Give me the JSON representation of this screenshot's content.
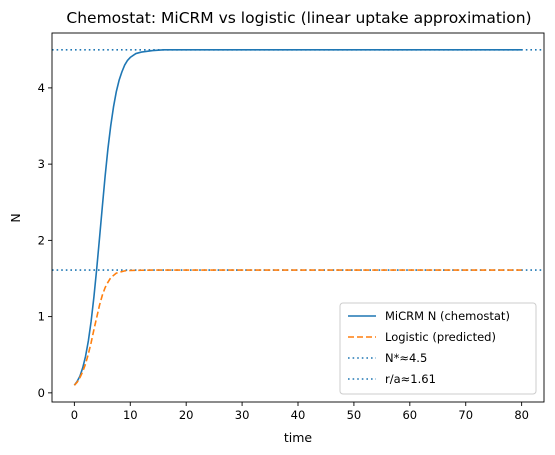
{
  "chart_data": {
    "type": "line",
    "title": "Chemostat: MiCRM vs logistic (linear uptake approximation)",
    "xlabel": "time",
    "ylabel": "N",
    "xlim": [
      -4,
      84
    ],
    "ylim": [
      -0.12,
      4.72
    ],
    "xticks": [
      0,
      10,
      20,
      30,
      40,
      50,
      60,
      70,
      80
    ],
    "yticks": [
      0,
      1,
      2,
      3,
      4
    ],
    "grid": false,
    "legend_position": "lower right",
    "series": [
      {
        "name": "MiCRM N (chemostat)",
        "style": "solid",
        "color": "#1f77b4",
        "x": [
          0,
          0.5,
          1,
          1.5,
          2,
          2.5,
          3,
          3.5,
          4,
          4.5,
          5,
          5.5,
          6,
          6.5,
          7,
          7.5,
          8,
          8.5,
          9,
          9.5,
          10,
          11,
          12,
          14,
          16,
          20,
          30,
          40,
          50,
          60,
          70,
          80
        ],
        "y": [
          0.1,
          0.15,
          0.22,
          0.33,
          0.48,
          0.68,
          0.94,
          1.26,
          1.63,
          2.03,
          2.44,
          2.84,
          3.2,
          3.5,
          3.75,
          3.95,
          4.1,
          4.21,
          4.3,
          4.36,
          4.4,
          4.45,
          4.47,
          4.49,
          4.5,
          4.5,
          4.5,
          4.5,
          4.5,
          4.5,
          4.5,
          4.5
        ]
      },
      {
        "name": "Logistic (predicted)",
        "style": "dashed",
        "color": "#ff7f0e",
        "x": [
          0,
          0.5,
          1,
          1.5,
          2,
          2.5,
          3,
          3.5,
          4,
          4.5,
          5,
          5.5,
          6,
          6.5,
          7,
          7.5,
          8,
          8.5,
          9,
          10,
          11,
          12,
          14,
          16,
          20,
          30,
          40,
          50,
          60,
          70,
          80
        ],
        "y": [
          0.1,
          0.14,
          0.2,
          0.28,
          0.38,
          0.51,
          0.66,
          0.83,
          0.99,
          1.15,
          1.28,
          1.38,
          1.45,
          1.51,
          1.54,
          1.57,
          1.58,
          1.59,
          1.6,
          1.605,
          1.607,
          1.608,
          1.61,
          1.61,
          1.61,
          1.61,
          1.61,
          1.61,
          1.61,
          1.61,
          1.61
        ]
      }
    ],
    "hlines": [
      {
        "name": "N*≈4.5",
        "y": 4.5,
        "style": "dotted",
        "color": "#1f77b4"
      },
      {
        "name": "r/a≈1.61",
        "y": 1.61,
        "style": "dotted",
        "color": "#1f77b4"
      }
    ]
  }
}
